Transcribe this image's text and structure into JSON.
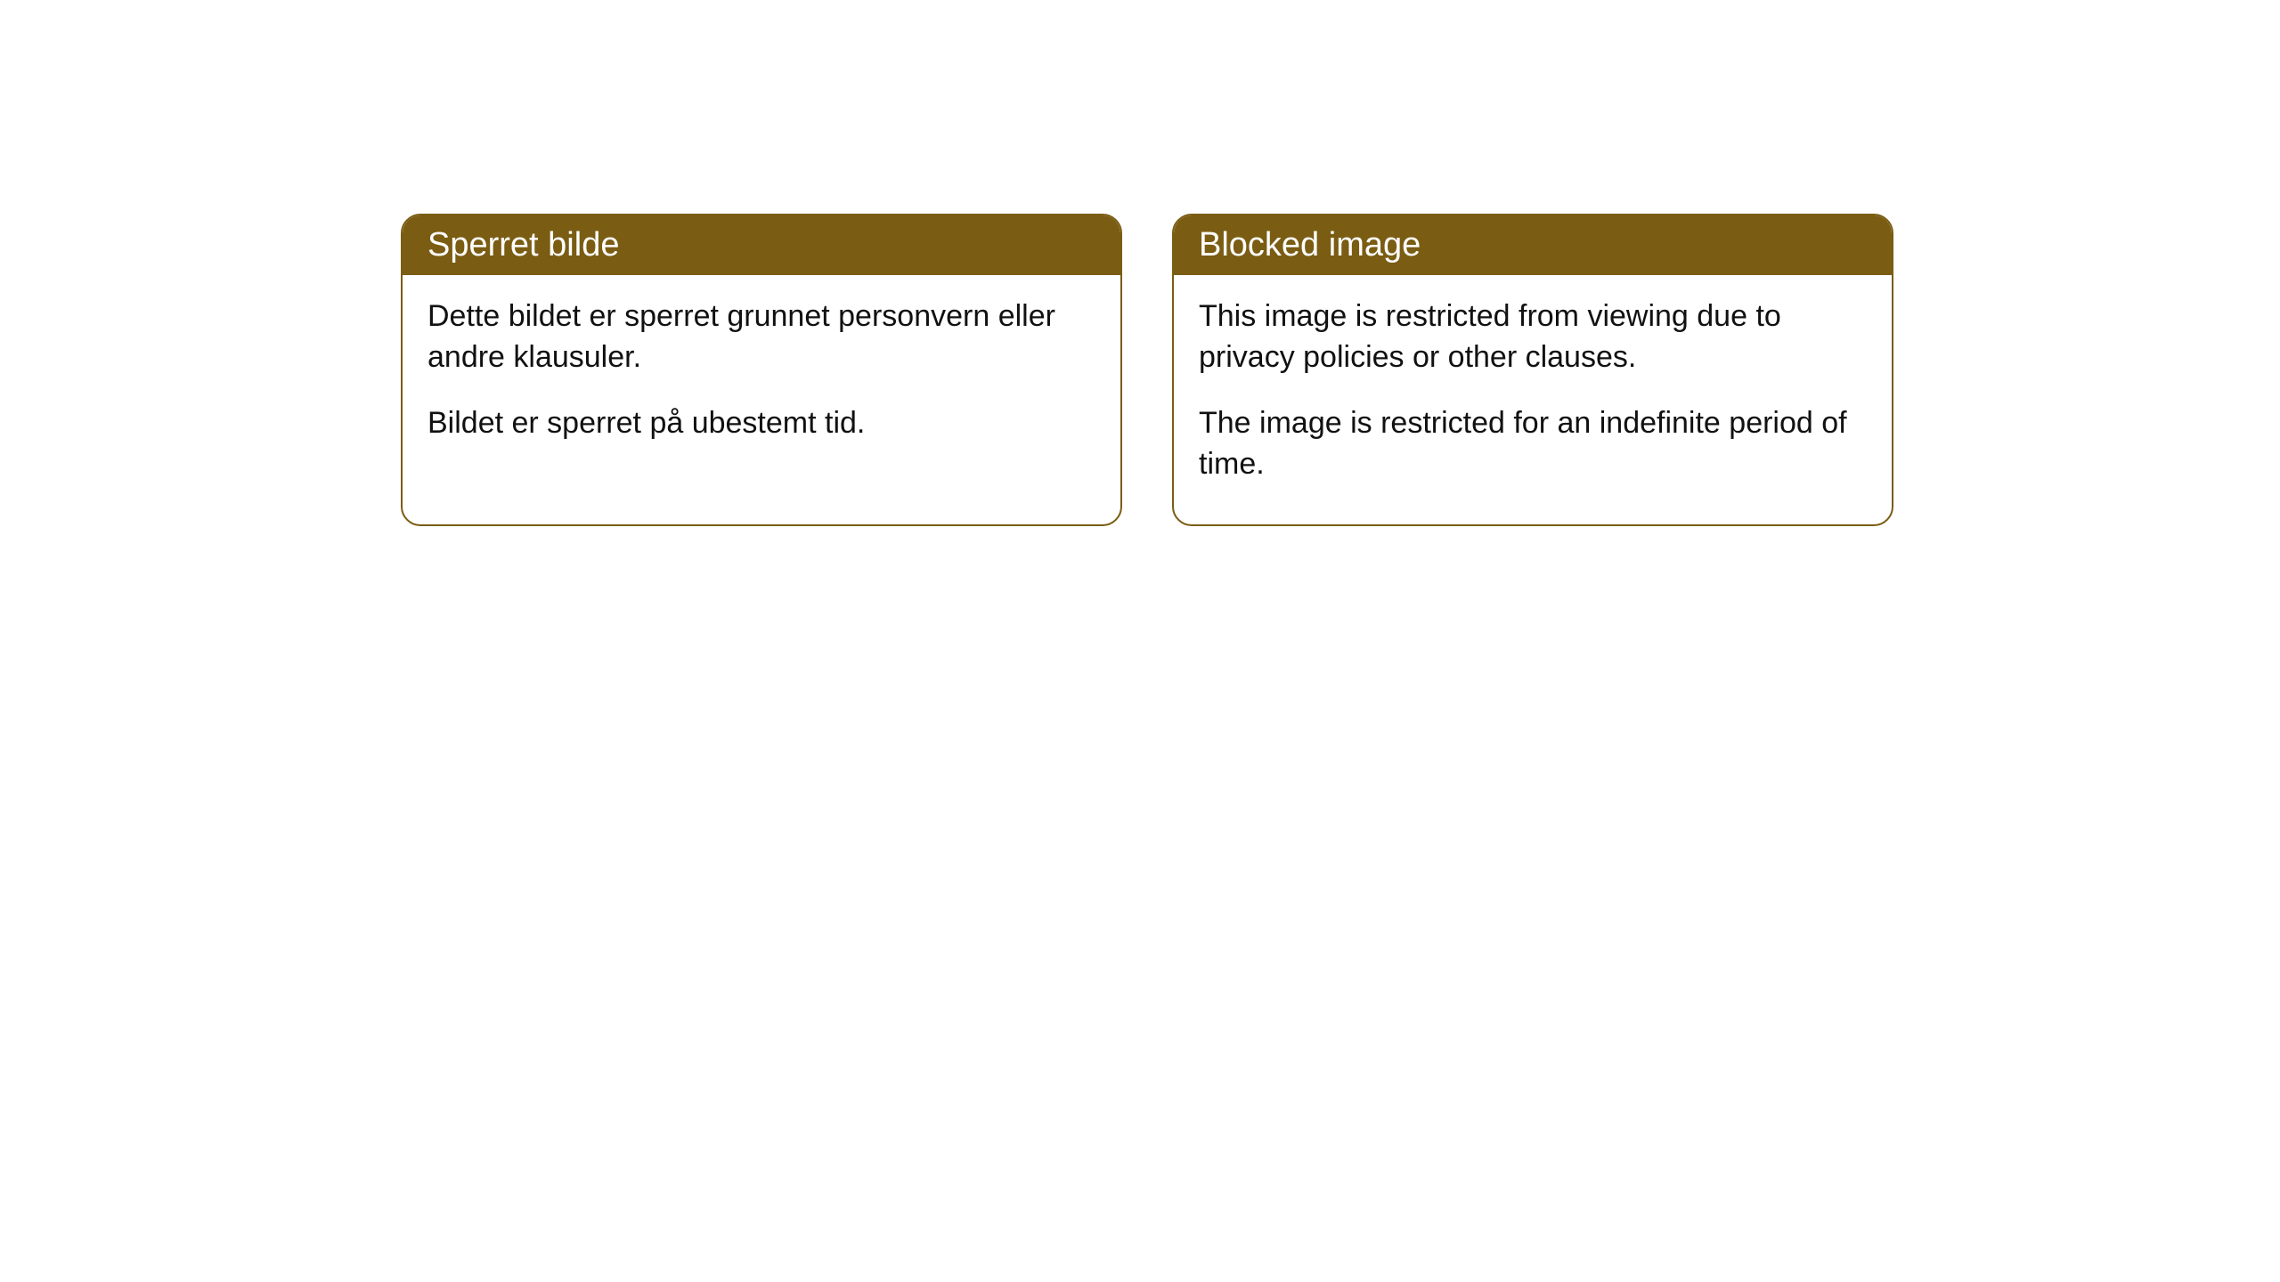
{
  "cards": [
    {
      "title": "Sperret bilde",
      "p1": "Dette bildet er sperret grunnet personvern eller andre klausuler.",
      "p2": "Bildet er sperret på ubestemt tid."
    },
    {
      "title": "Blocked image",
      "p1": "This image is restricted from viewing due to privacy policies or other clauses.",
      "p2": "The image is restricted for an indefinite period of time."
    }
  ],
  "style": {
    "header_bg": "#7a5c13",
    "header_text_color": "#ffffff",
    "border_color": "#7a5c13",
    "body_bg": "#ffffff",
    "body_text_color": "#111111",
    "border_radius": 22,
    "title_fontsize": 38,
    "body_fontsize": 34
  }
}
